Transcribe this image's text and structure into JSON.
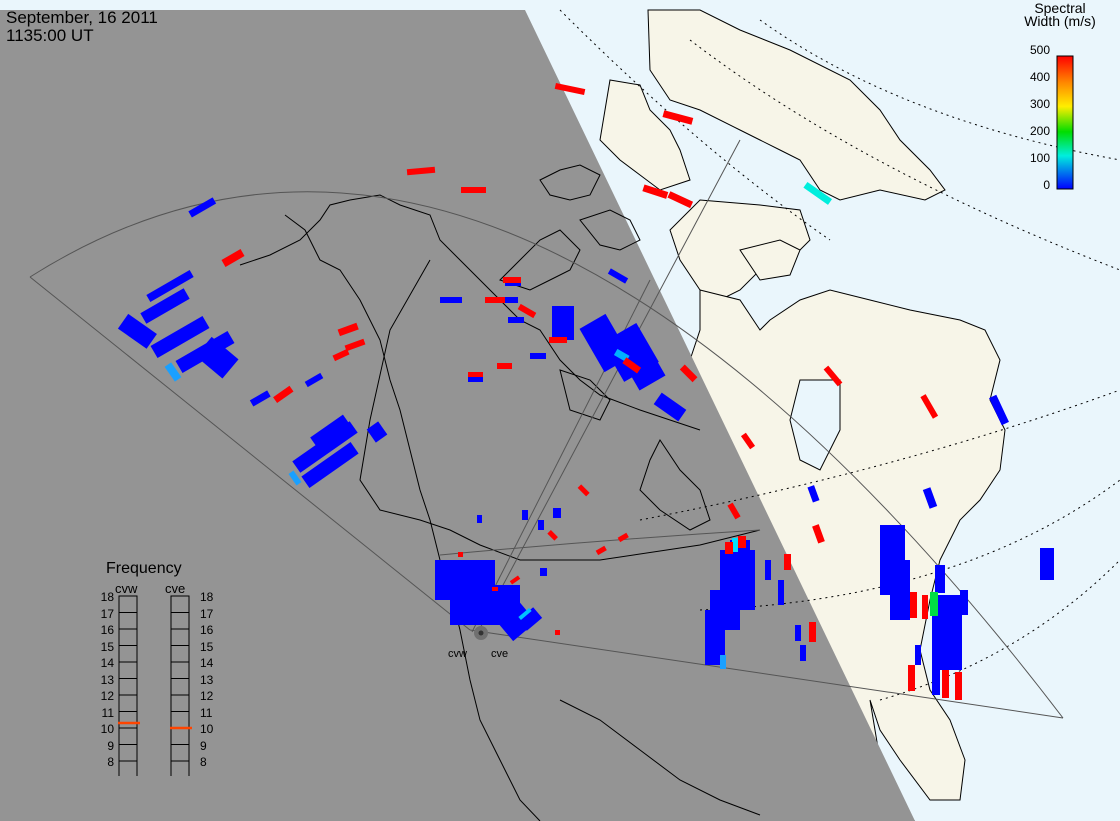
{
  "header": {
    "date": "September, 16 2011",
    "time": "1135:00 UT"
  },
  "legend": {
    "title_line1": "Spectral",
    "title_line2": "Width (m/s)",
    "ticks": [
      "500",
      "400",
      "300",
      "200",
      "100",
      "0"
    ],
    "scale_colors": [
      "#ff0000",
      "#ff8800",
      "#ffee00",
      "#00dd00",
      "#00eedd",
      "#0000ff"
    ]
  },
  "frequency": {
    "title": "Frequency",
    "columns": [
      {
        "name": "cvw",
        "value_mhz": 10.8
      },
      {
        "name": "cve",
        "value_mhz": 10.5
      }
    ],
    "ticks": [
      "18",
      "17",
      "16",
      "15",
      "14",
      "13",
      "12",
      "11",
      "10",
      "9",
      "8"
    ],
    "marker_color": "#ff4400"
  },
  "radars": {
    "west": "cvw",
    "east": "cve"
  },
  "colors": {
    "night": "#949494",
    "ocean_day": "#eaf6fc",
    "land_day": "#f7f5e8",
    "fov_line": "#555555",
    "low_width": "#0000ff",
    "high_width": "#ff0000"
  }
}
